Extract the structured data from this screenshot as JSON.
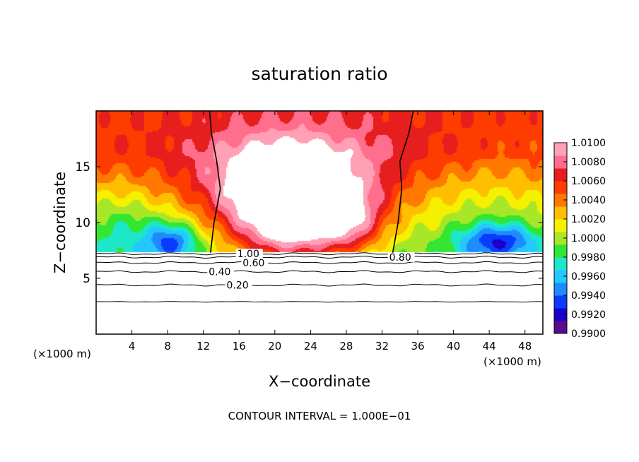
{
  "chart_data": {
    "type": "heatmap",
    "title": "saturation ratio",
    "xlabel": "X−coordinate",
    "ylabel": "Z−coordinate",
    "x_unit_left": "(×1000 m)",
    "x_unit_right": "(×1000 m)",
    "footer": "CONTOUR INTERVAL = 1.000E−01",
    "xlim": [
      0,
      50
    ],
    "ylim": [
      0,
      20
    ],
    "x_ticks": [
      4,
      8,
      12,
      16,
      20,
      24,
      28,
      32,
      36,
      40,
      44,
      48
    ],
    "y_ticks": [
      5,
      10,
      15
    ],
    "colorbar": {
      "min": 0.99,
      "max": 1.01,
      "tick_values": [
        0.99,
        0.992,
        0.994,
        0.996,
        0.998,
        1.0,
        1.002,
        1.004,
        1.006,
        1.008,
        1.01
      ],
      "tick_labels": [
        "0.9900",
        "0.9920",
        "0.9940",
        "0.9960",
        "0.9980",
        "1.0000",
        "1.0020",
        "1.0040",
        "1.0060",
        "1.0080",
        "1.0100"
      ],
      "colors": [
        "#5a0a8c",
        "#1a00c8",
        "#0a3cff",
        "#1e8cff",
        "#23c8ff",
        "#1ee6c8",
        "#32e632",
        "#a8e628",
        "#f5f000",
        "#ffbe00",
        "#ff7800",
        "#ff3c00",
        "#e61e1e",
        "#ff6e8c",
        "#ffa0b4"
      ]
    },
    "contour_lines": [
      {
        "value": 0.2,
        "label": "0.20",
        "z": 4.4
      },
      {
        "value": 0.4,
        "label": "0.40",
        "z": 5.6
      },
      {
        "value": 0.6,
        "label": "0.60",
        "z": 6.4
      },
      {
        "value": 0.8,
        "label": "0.80",
        "z": 6.9
      },
      {
        "value": 1.0,
        "label": "1.00",
        "z": 7.2
      }
    ],
    "contour_reference_z": 2.9,
    "saturated_line_x_left": [
      12.8,
      13.2,
      13.9,
      13.5,
      12.9,
      12.7
    ],
    "saturated_line_x_right": [
      33.2,
      33.8,
      34.2,
      34.0,
      35.0,
      35.5
    ],
    "field": {
      "cloud_base_z": 7.3,
      "background": 0.9994,
      "features": [
        {
          "x": 21.5,
          "z": 10.5,
          "sx": 4.5,
          "sz": 3.2,
          "amp": 0.011
        },
        {
          "x": 21.5,
          "z": 13.5,
          "sx": 6.5,
          "sz": 2.5,
          "amp": 0.006
        },
        {
          "x": 28.5,
          "z": 10.0,
          "sx": 2.6,
          "sz": 2.0,
          "amp": 0.0055
        },
        {
          "x": 23.0,
          "z": 16.0,
          "sx": 11.0,
          "sz": 5.0,
          "amp": 0.002
        },
        {
          "x": 8.5,
          "z": 8.3,
          "sx": 2.0,
          "sz": 1.2,
          "amp": -0.006
        },
        {
          "x": 45.0,
          "z": 8.3,
          "sx": 3.0,
          "sz": 1.1,
          "amp": -0.006
        },
        {
          "x": 3.0,
          "z": 9.5,
          "sx": 4.0,
          "sz": 2.5,
          "amp": -0.003
        },
        {
          "x": 44.0,
          "z": 10.5,
          "sx": 5.0,
          "sz": 3.5,
          "amp": -0.002
        }
      ]
    }
  }
}
